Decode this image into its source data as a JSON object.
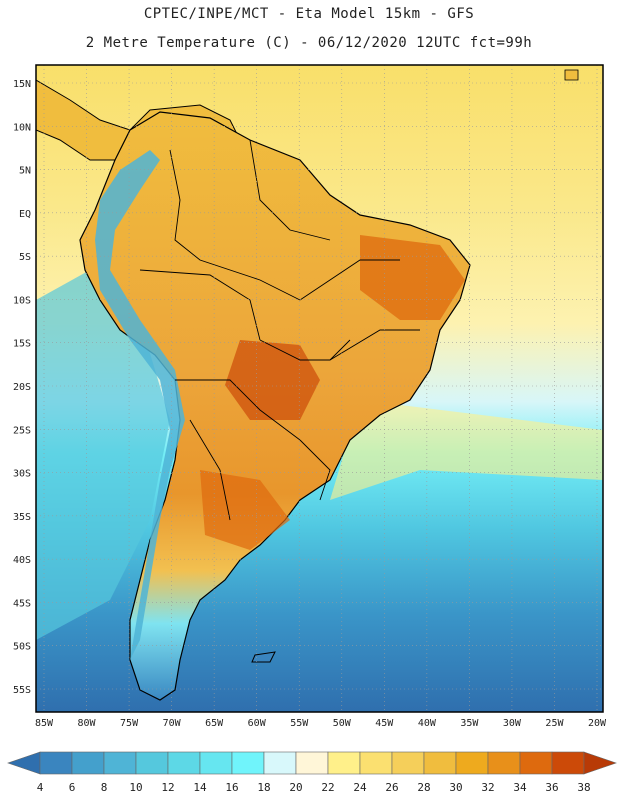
{
  "header": {
    "line1": "CPTEC/INPE/MCT  -   Eta Model 15km  -  GFS",
    "line2": "2 Metre Temperature (C) - 06/12/2020 12UTC fct=99h"
  },
  "map": {
    "lat_ticks": [
      "15N",
      "10N",
      "5N",
      "EQ",
      "5S",
      "10S",
      "15S",
      "20S",
      "25S",
      "30S",
      "35S",
      "40S",
      "45S",
      "50S",
      "55S"
    ],
    "lon_ticks": [
      "85W",
      "80W",
      "75W",
      "70W",
      "65W",
      "60W",
      "55W",
      "50W",
      "45W",
      "40W",
      "35W",
      "30W",
      "25W",
      "20W"
    ]
  },
  "colorbar": {
    "levels": [
      "4",
      "6",
      "8",
      "10",
      "12",
      "14",
      "16",
      "18",
      "20",
      "22",
      "24",
      "26",
      "28",
      "30",
      "32",
      "34",
      "36",
      "38"
    ],
    "colors": [
      "#2f6fae",
      "#3a85bf",
      "#44a0cc",
      "#4fb4d6",
      "#55c8dd",
      "#5dd8e6",
      "#66e6f0",
      "#70f4fb",
      "#d8f8fb",
      "#fff6d8",
      "#fff08a",
      "#fbe070",
      "#f5cf5a",
      "#f0bd3e",
      "#eeaa1e",
      "#e8901a",
      "#de6a0e",
      "#cc4a08",
      "#b83a06"
    ]
  }
}
